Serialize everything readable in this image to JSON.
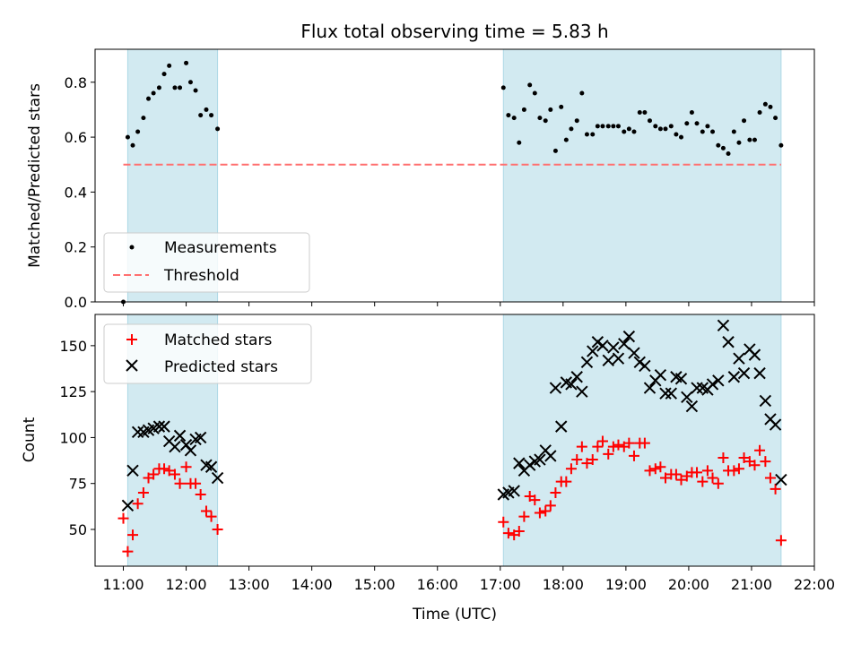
{
  "figure": {
    "title": "Flux total observing time = 5.83 h",
    "xlabel": "Time (UTC)",
    "xticks": [
      "11:00",
      "12:00",
      "13:00",
      "14:00",
      "15:00",
      "16:00",
      "17:00",
      "18:00",
      "19:00",
      "20:00",
      "21:00",
      "22:00"
    ],
    "xlim": [
      10.55,
      22.0
    ],
    "shaded_intervals": [
      [
        11.07,
        12.5
      ],
      [
        17.05,
        21.47
      ]
    ],
    "shade_color": "#add8e6"
  },
  "chart_data": [
    {
      "type": "scatter",
      "ylabel": "Matched/Predicted stars",
      "ylim": [
        0,
        0.92
      ],
      "yticks": [
        "0.0",
        "0.2",
        "0.4",
        "0.6",
        "0.8"
      ],
      "ytick_values": [
        0,
        0.2,
        0.4,
        0.6,
        0.8
      ],
      "legend_placement": "lower-left",
      "threshold": {
        "name": "Threshold",
        "value": 0.5,
        "x_range": [
          11.0,
          21.47
        ],
        "color": "#ff6f6f"
      },
      "series": [
        {
          "name": "Measurements",
          "color": "#000000",
          "marker": "dot",
          "x": [
            11.0,
            11.07,
            11.15,
            11.23,
            11.32,
            11.4,
            11.48,
            11.57,
            11.65,
            11.73,
            11.82,
            11.9,
            12.0,
            12.07,
            12.15,
            12.23,
            12.32,
            12.4,
            12.5,
            17.05,
            17.13,
            17.22,
            17.3,
            17.38,
            17.47,
            17.55,
            17.63,
            17.72,
            17.8,
            17.88,
            17.97,
            18.05,
            18.13,
            18.22,
            18.3,
            18.38,
            18.47,
            18.55,
            18.63,
            18.72,
            18.8,
            18.88,
            18.97,
            19.05,
            19.13,
            19.22,
            19.3,
            19.38,
            19.47,
            19.55,
            19.63,
            19.72,
            19.8,
            19.88,
            19.97,
            20.05,
            20.13,
            20.22,
            20.3,
            20.38,
            20.47,
            20.55,
            20.63,
            20.72,
            20.8,
            20.88,
            20.97,
            21.05,
            21.13,
            21.22,
            21.3,
            21.38,
            21.47
          ],
          "y": [
            0.0,
            0.6,
            0.57,
            0.62,
            0.67,
            0.74,
            0.76,
            0.78,
            0.83,
            0.86,
            0.78,
            0.78,
            0.87,
            0.8,
            0.77,
            0.68,
            0.7,
            0.68,
            0.63,
            0.78,
            0.68,
            0.67,
            0.58,
            0.7,
            0.79,
            0.76,
            0.67,
            0.66,
            0.7,
            0.55,
            0.71,
            0.59,
            0.63,
            0.66,
            0.76,
            0.61,
            0.61,
            0.64,
            0.64,
            0.64,
            0.64,
            0.64,
            0.62,
            0.63,
            0.62,
            0.69,
            0.69,
            0.66,
            0.64,
            0.63,
            0.63,
            0.64,
            0.61,
            0.6,
            0.65,
            0.69,
            0.65,
            0.62,
            0.64,
            0.62,
            0.57,
            0.56,
            0.54,
            0.62,
            0.58,
            0.66,
            0.59,
            0.59,
            0.69,
            0.72,
            0.71,
            0.67,
            0.57
          ]
        }
      ]
    },
    {
      "type": "scatter",
      "ylabel": "Count",
      "ylim": [
        30,
        167
      ],
      "yticks": [
        "50",
        "75",
        "100",
        "125",
        "150"
      ],
      "ytick_values": [
        50,
        75,
        100,
        125,
        150
      ],
      "legend_placement": "upper-left",
      "series": [
        {
          "name": "Matched stars",
          "color": "#ff0000",
          "marker": "plus",
          "x": [
            11.0,
            11.07,
            11.15,
            11.23,
            11.32,
            11.4,
            11.48,
            11.57,
            11.65,
            11.73,
            11.82,
            11.9,
            12.0,
            12.07,
            12.15,
            12.23,
            12.32,
            12.4,
            12.5,
            17.05,
            17.13,
            17.22,
            17.3,
            17.38,
            17.47,
            17.55,
            17.63,
            17.72,
            17.8,
            17.88,
            17.97,
            18.05,
            18.13,
            18.22,
            18.3,
            18.38,
            18.47,
            18.55,
            18.63,
            18.72,
            18.8,
            18.88,
            18.97,
            19.05,
            19.13,
            19.22,
            19.3,
            19.38,
            19.47,
            19.55,
            19.63,
            19.72,
            19.8,
            19.88,
            19.97,
            20.05,
            20.13,
            20.22,
            20.3,
            20.38,
            20.47,
            20.55,
            20.63,
            20.72,
            20.8,
            20.88,
            20.97,
            21.05,
            21.13,
            21.22,
            21.3,
            21.38,
            21.47
          ],
          "y": [
            56,
            38,
            47,
            64,
            70,
            78,
            80,
            83,
            83,
            82,
            80,
            75,
            84,
            75,
            75,
            69,
            60,
            57,
            50,
            54,
            48,
            47,
            49,
            57,
            68,
            66,
            59,
            60,
            63,
            70,
            76,
            76,
            83,
            88,
            95,
            86,
            88,
            95,
            98,
            91,
            95,
            96,
            95,
            97,
            90,
            97,
            97,
            82,
            83,
            84,
            78,
            80,
            80,
            77,
            79,
            81,
            81,
            76,
            82,
            78,
            75,
            89,
            82,
            82,
            83,
            89,
            87,
            85,
            93,
            87,
            78,
            72,
            44
          ]
        },
        {
          "name": "Predicted stars",
          "color": "#000000",
          "marker": "cross",
          "x": [
            11.0,
            11.07,
            11.15,
            11.23,
            11.32,
            11.4,
            11.48,
            11.57,
            11.65,
            11.73,
            11.82,
            11.9,
            12.0,
            12.07,
            12.15,
            12.23,
            12.32,
            12.4,
            12.5,
            17.05,
            17.13,
            17.22,
            17.3,
            17.38,
            17.47,
            17.55,
            17.63,
            17.72,
            17.8,
            17.88,
            17.97,
            18.05,
            18.13,
            18.22,
            18.3,
            18.38,
            18.47,
            18.55,
            18.63,
            18.72,
            18.8,
            18.88,
            18.97,
            19.05,
            19.13,
            19.22,
            19.3,
            19.38,
            19.47,
            19.55,
            19.63,
            19.72,
            19.8,
            19.88,
            19.97,
            20.05,
            20.13,
            20.22,
            20.3,
            20.38,
            20.47,
            20.55,
            20.63,
            20.72,
            20.8,
            20.88,
            20.97,
            21.05,
            21.13,
            21.22,
            21.3,
            21.38,
            21.47
          ],
          "y": [
            null,
            63,
            82,
            103,
            103,
            104,
            105,
            106,
            106,
            98,
            95,
            101,
            96,
            93,
            99,
            100,
            85,
            84,
            78,
            69,
            70,
            71,
            86,
            82,
            85,
            87,
            88,
            93,
            90,
            127,
            106,
            130,
            129,
            133,
            125,
            141,
            147,
            152,
            150,
            142,
            149,
            143,
            151,
            155,
            146,
            141,
            139,
            127,
            131,
            134,
            124,
            124,
            133,
            132,
            122,
            117,
            127,
            127,
            126,
            129,
            131,
            161,
            152,
            133,
            143,
            135,
            148,
            145,
            135,
            120,
            110,
            107,
            77
          ]
        }
      ]
    }
  ]
}
